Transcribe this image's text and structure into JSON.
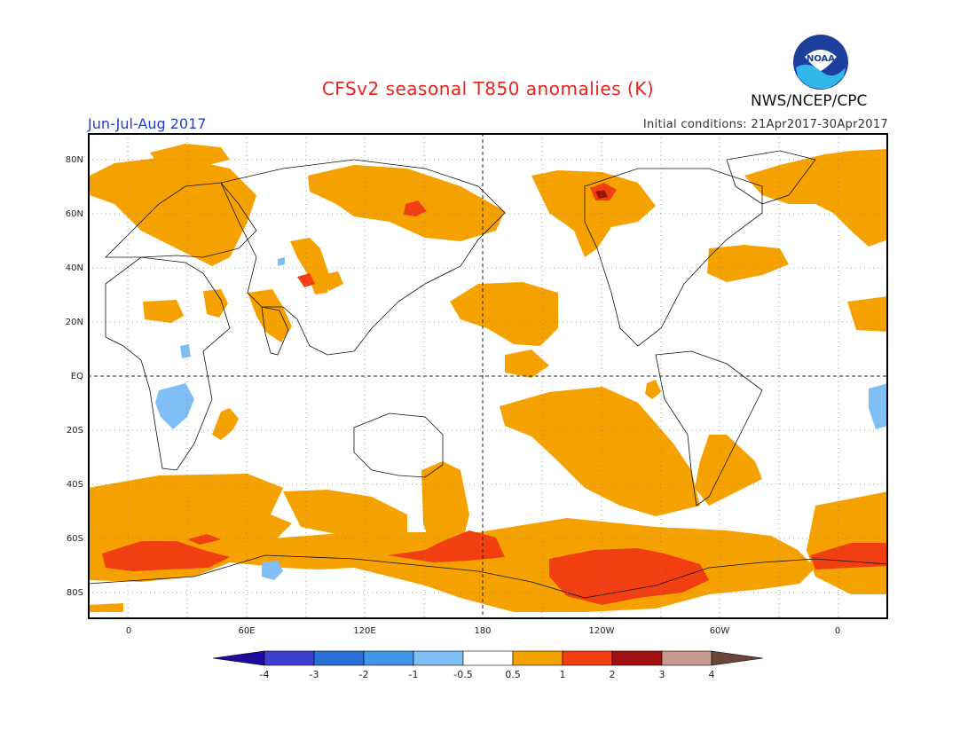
{
  "header": {
    "title": "CFSv2 seasonal T850 anomalies (K)",
    "period": "Jun-Jul-Aug 2017",
    "initial_conditions": "Initial conditions: 21Apr2017-30Apr2017",
    "agency": "NWS/NCEP/CPC",
    "logo_text": "NOAA"
  },
  "map": {
    "projection": "equirectangular",
    "lon_range": "-20 to 380 (centered on 180)",
    "lat_range": "-90 to 90",
    "lat_labels": [
      "80N",
      "60N",
      "40N",
      "20N",
      "EQ",
      "20S",
      "40S",
      "60S",
      "80S"
    ],
    "lon_labels": [
      "0",
      "60E",
      "120E",
      "180",
      "120W",
      "60W",
      "0"
    ],
    "grid": "dotted every 20 degrees"
  },
  "colorbar": {
    "labels": [
      "-4",
      "-3",
      "-2",
      "-1",
      "-0.5",
      "0.5",
      "1",
      "2",
      "3",
      "4"
    ],
    "colors": [
      "#1e0a9e",
      "#3f3fcf",
      "#2a6fd6",
      "#3f95e8",
      "#7fbff5",
      "#ffffff",
      "#f5a100",
      "#f23f12",
      "#a01010",
      "#c69a8c",
      "#6a4638"
    ]
  },
  "anomaly_colors": {
    "warm1": "#f5a100",
    "warm2": "#f23f12",
    "warm3": "#a01010",
    "cool1": "#7fbff5"
  }
}
